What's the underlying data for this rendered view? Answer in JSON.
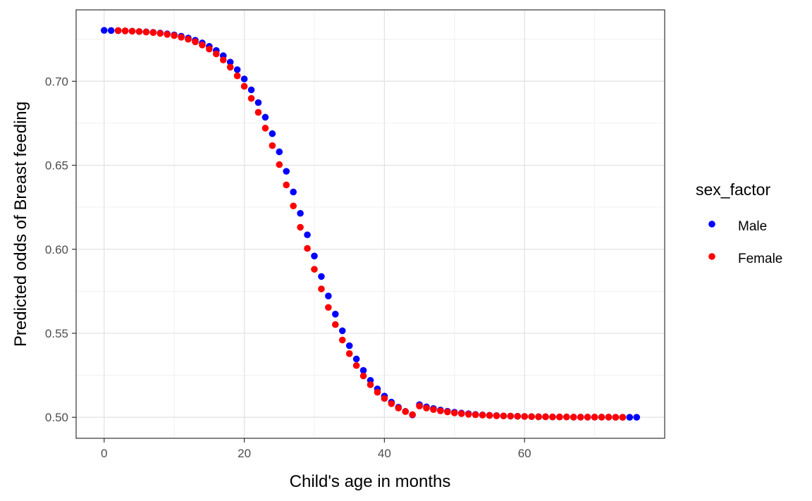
{
  "chart_data": {
    "type": "scatter",
    "title": "",
    "xlabel": "Child's age in months",
    "ylabel": "Predicted odds of Breast feeding",
    "xlim": [
      -4,
      80
    ],
    "ylim": [
      0.4875,
      0.7425
    ],
    "x_ticks": [
      0,
      20,
      40,
      60
    ],
    "x_tick_labels": [
      "0",
      "20",
      "40",
      "60"
    ],
    "y_ticks": [
      0.5,
      0.55,
      0.6,
      0.65,
      0.7
    ],
    "y_tick_labels": [
      "0.50",
      "0.55",
      "0.60",
      "0.65",
      "0.70"
    ],
    "grid": true,
    "legend": {
      "title": "sex_factor",
      "placement": "right"
    },
    "series": [
      {
        "name": "Male",
        "color": "#0000ff",
        "x": [
          0,
          1,
          2,
          3,
          4,
          5,
          6,
          7,
          8,
          9,
          10,
          11,
          12,
          13,
          14,
          15,
          16,
          17,
          18,
          19,
          20,
          21,
          22,
          23,
          24,
          25,
          26,
          27,
          28,
          29,
          30,
          31,
          32,
          33,
          34,
          35,
          36,
          37,
          38,
          39,
          40,
          41,
          42,
          43,
          44,
          45,
          46,
          47,
          48,
          49,
          50,
          51,
          52,
          53,
          54,
          55,
          56,
          57,
          58,
          59,
          60,
          61,
          62,
          63,
          64,
          65,
          66,
          67,
          68,
          69,
          70,
          71,
          72,
          73,
          74,
          75,
          76
        ],
        "y": [
          0.7303,
          0.7302,
          0.7301,
          0.73,
          0.7298,
          0.7296,
          0.7294,
          0.7291,
          0.7287,
          0.7282,
          0.7276,
          0.7268,
          0.7257,
          0.7244,
          0.7228,
          0.7208,
          0.7183,
          0.7152,
          0.7114,
          0.7069,
          0.7014,
          0.6949,
          0.6873,
          0.6786,
          0.6688,
          0.658,
          0.6464,
          0.6341,
          0.6214,
          0.6086,
          0.596,
          0.5838,
          0.5722,
          0.5614,
          0.5515,
          0.5426,
          0.5347,
          0.5279,
          0.522,
          0.5169,
          0.5126,
          0.509,
          0.506,
          0.5035,
          0.5014,
          0.5075,
          0.5062,
          0.5052,
          0.5043,
          0.5036,
          0.503,
          0.5025,
          0.5021,
          0.5017,
          0.5014,
          0.5012,
          0.501,
          0.5008,
          0.5007,
          0.5006,
          0.5005,
          0.5004,
          0.5003,
          0.5003,
          0.5002,
          0.5002,
          0.5002,
          0.5001,
          0.5001,
          0.5001,
          0.5001,
          0.5001,
          0.5001,
          0.5,
          0.5,
          0.5,
          0.5
        ]
      },
      {
        "name": "Female",
        "color": "#ff0000",
        "x": [
          2,
          3,
          4,
          5,
          6,
          7,
          8,
          9,
          10,
          11,
          12,
          13,
          14,
          15,
          16,
          17,
          18,
          19,
          20,
          21,
          22,
          23,
          24,
          25,
          26,
          27,
          28,
          29,
          30,
          31,
          32,
          33,
          34,
          35,
          36,
          37,
          38,
          39,
          40,
          41,
          42,
          43,
          44,
          45,
          46,
          47,
          48,
          49,
          50,
          51,
          52,
          53,
          54,
          55,
          56,
          57,
          58,
          59,
          60,
          61,
          62,
          63,
          64,
          65,
          66,
          67,
          68,
          69,
          70,
          71,
          72,
          73,
          74
        ],
        "y": [
          0.7302,
          0.73,
          0.7298,
          0.7296,
          0.7293,
          0.729,
          0.7285,
          0.7279,
          0.7272,
          0.7262,
          0.725,
          0.7235,
          0.7216,
          0.7192,
          0.7163,
          0.7127,
          0.7084,
          0.7032,
          0.697,
          0.6898,
          0.6815,
          0.6721,
          0.6617,
          0.6504,
          0.6383,
          0.6258,
          0.6131,
          0.6005,
          0.5881,
          0.5764,
          0.5654,
          0.5552,
          0.546,
          0.5379,
          0.5308,
          0.5246,
          0.5194,
          0.5149,
          0.5112,
          0.5081,
          0.5055,
          0.5034,
          0.5016,
          0.5067,
          0.5055,
          0.5046,
          0.5038,
          0.5032,
          0.5026,
          0.5022,
          0.5018,
          0.5015,
          0.5013,
          0.5011,
          0.5009,
          0.5008,
          0.5007,
          0.5006,
          0.5005,
          0.5004,
          0.5003,
          0.5003,
          0.5002,
          0.5002,
          0.5002,
          0.5001,
          0.5001,
          0.5001,
          0.5001,
          0.5001,
          0.5001,
          0.5,
          0.5
        ]
      }
    ]
  }
}
